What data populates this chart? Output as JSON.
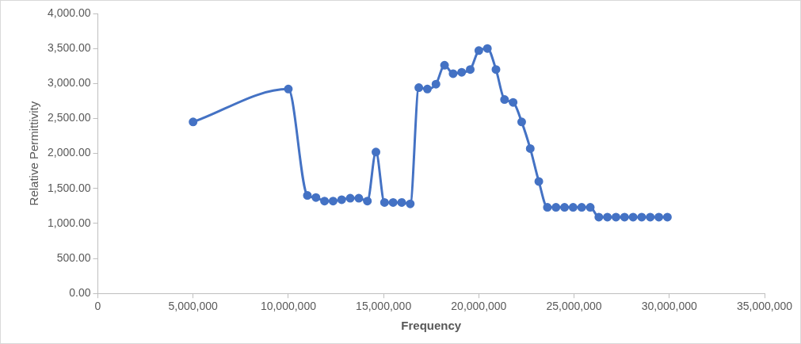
{
  "chart_data": {
    "type": "line",
    "xlabel": "Frequency",
    "ylabel": "Relative Permittivity",
    "marker": "circle",
    "grid": false,
    "legend": false,
    "x": [
      5000000,
      10000000,
      11000000,
      11450000,
      11900000,
      12350000,
      12800000,
      13250000,
      13700000,
      14150000,
      14600000,
      15050000,
      15500000,
      15950000,
      16400000,
      16850000,
      17300000,
      17750000,
      18200000,
      18650000,
      19100000,
      19550000,
      20000000,
      20450000,
      20900000,
      21350000,
      21800000,
      22250000,
      22700000,
      23150000,
      23600000,
      24050000,
      24500000,
      24950000,
      25400000,
      25850000,
      26300000,
      26750000,
      27200000,
      27650000,
      28100000,
      28550000,
      29000000,
      29450000,
      29900000
    ],
    "series": [
      {
        "color": "#4472c4",
        "values": [
          2450,
          2920,
          1400,
          1370,
          1320,
          1320,
          1340,
          1360,
          1360,
          1320,
          2020,
          1300,
          1300,
          1300,
          1280,
          2940,
          2920,
          2990,
          3260,
          3140,
          3160,
          3200,
          3470,
          3500,
          3200,
          2770,
          2730,
          2450,
          2070,
          1600,
          1230,
          1230,
          1230,
          1230,
          1230,
          1230,
          1090,
          1090,
          1090,
          1090,
          1090,
          1090,
          1090,
          1090,
          1090
        ]
      }
    ],
    "xlim": [
      0,
      35000000
    ],
    "xticks": [
      0,
      {
        "value": 5000000,
        "label": "5,000,000"
      },
      {
        "value": 10000000,
        "label": "10,000,000"
      },
      {
        "value": 15000000,
        "label": "15,000,000"
      },
      {
        "value": 20000000,
        "label": "20,000,000"
      },
      {
        "value": 25000000,
        "label": "25,000,000"
      },
      {
        "value": 30000000,
        "label": "30,000,000"
      },
      {
        "value": 35000000,
        "label": "35,000,000"
      }
    ],
    "ylim": [
      0,
      4000
    ],
    "yticks": [
      {
        "value": 0,
        "label": "0.00"
      },
      {
        "value": 500,
        "label": "500.00"
      },
      {
        "value": 1000,
        "label": "1,000.00"
      },
      {
        "value": 1500,
        "label": "1,500.00"
      },
      {
        "value": 2000,
        "label": "2,000.00"
      },
      {
        "value": 2500,
        "label": "2,500.00"
      },
      {
        "value": 3000,
        "label": "3,000.00"
      },
      {
        "value": 3500,
        "label": "3,500.00"
      },
      {
        "value": 4000,
        "label": "4,000.00"
      }
    ]
  }
}
